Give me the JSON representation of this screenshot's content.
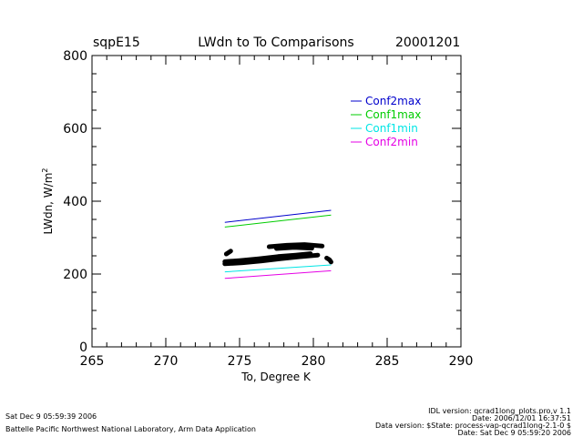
{
  "header": {
    "site": "sqpE15",
    "title": "LWdn to To Comparisons",
    "date": "20001201"
  },
  "chart_data": {
    "type": "line",
    "title": "LWdn to To Comparisons",
    "xlabel": "To, Degree K",
    "ylabel_main": "LWdn, W/m",
    "ylabel_sup": "2",
    "xlim": [
      265,
      290
    ],
    "ylim": [
      0,
      800
    ],
    "x_ticks": [
      265,
      270,
      275,
      280,
      285,
      290
    ],
    "y_ticks": [
      0,
      200,
      400,
      600,
      800
    ],
    "x_minor_step": 1,
    "y_minor_step": 50,
    "grid": false,
    "legend_position": "top-right",
    "series": [
      {
        "name": "Conf2max",
        "color": "#0000cc",
        "x": [
          274.0,
          281.2
        ],
        "y": [
          342,
          375
        ]
      },
      {
        "name": "Conf1max",
        "color": "#00cc00",
        "x": [
          274.0,
          281.2
        ],
        "y": [
          329,
          362
        ]
      },
      {
        "name": "Conf1min",
        "color": "#00e5e5",
        "x": [
          274.0,
          281.2
        ],
        "y": [
          206,
          225
        ]
      },
      {
        "name": "Conf2min",
        "color": "#e500e5",
        "x": [
          274.0,
          281.2
        ],
        "y": [
          188,
          209
        ]
      }
    ],
    "observations": {
      "color": "#000000",
      "segments": [
        {
          "x": [
            274.0,
            275.2,
            276.5,
            277.8,
            279.0,
            280.3
          ],
          "y": [
            228,
            231,
            236,
            242,
            247,
            252
          ]
        },
        {
          "x": [
            274.0,
            275.0,
            276.3,
            277.6,
            278.8,
            279.8
          ],
          "y": [
            234,
            237,
            242,
            248,
            252,
            256
          ]
        },
        {
          "x": [
            274.1,
            274.4
          ],
          "y": [
            255,
            263
          ]
        },
        {
          "x": [
            277.0,
            278.2,
            279.4,
            280.6
          ],
          "y": [
            275,
            279,
            281,
            277
          ]
        },
        {
          "x": [
            277.5,
            278.7,
            279.9
          ],
          "y": [
            270,
            273,
            271
          ]
        },
        {
          "x": [
            280.9,
            281.1,
            281.2
          ],
          "y": [
            244,
            239,
            233
          ]
        }
      ]
    }
  },
  "footer": {
    "left_line1": "Sat Dec  9 05:59:39 2006",
    "left_line2": "Battelle Pacific Northwest National Laboratory, Arm Data Application",
    "right_line1": "IDL version: qcrad1long_plots.pro,v 1.1",
    "right_line2": "Date: 2006/12/01 16:37:51",
    "right_line3": "Data version: $State: process-vap-qcrad1long-2.1-0 $",
    "right_line4": "Date: Sat Dec  9 05:59:20 2006"
  }
}
